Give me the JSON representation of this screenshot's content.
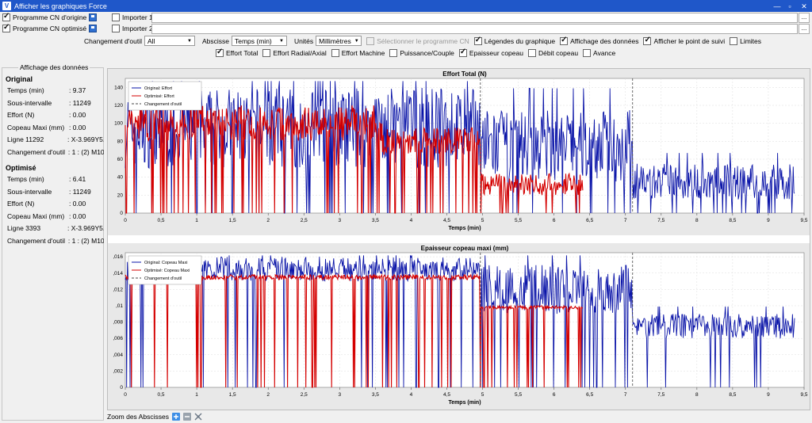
{
  "window": {
    "title": "Afficher les graphiques Force",
    "icon": "V"
  },
  "files": {
    "original": {
      "label": "Programme CN d'origine",
      "checked": true
    },
    "optimized": {
      "label": "Programme CN optimisé",
      "checked": true
    },
    "import1": {
      "label": "Importer 1",
      "checked": false
    },
    "import2": {
      "label": "Importer 2",
      "checked": false
    },
    "browse_label": "..."
  },
  "options": {
    "tool_change_label": "Changement d'outil",
    "tool_change_value": "All",
    "abscissa_label": "Abscisse",
    "abscissa_value": "Temps (min)",
    "units_label": "Unités",
    "units_value": "Millimètres",
    "select_program": "Sélectionner le programme CN",
    "legends": "Légendes du graphique",
    "data_display": "Affichage des données",
    "tracking_point": "Afficher le point de suivi",
    "limits": "Limites"
  },
  "series_toggles": [
    {
      "label": "Effort Total",
      "checked": true
    },
    {
      "label": "Effort Radial/Axial",
      "checked": false
    },
    {
      "label": "Effort Machine",
      "checked": false
    },
    {
      "label": "Puissance/Couple",
      "checked": false
    },
    {
      "label": "Epaisseur copeau",
      "checked": true
    },
    {
      "label": "Débit copeau",
      "checked": false
    },
    {
      "label": "Avance",
      "checked": false
    }
  ],
  "data_panel": {
    "title": "Affichage des données",
    "original": {
      "heading": "Original",
      "rows": [
        {
          "k": "Temps (min)",
          "v": ": 9.37"
        },
        {
          "k": "Sous-intervalle",
          "v": ": 11249"
        },
        {
          "k": "Effort (N)",
          "v": ": 0.00"
        },
        {
          "k": "Copeau Maxi (mm)",
          "v": ": 0.00"
        },
        {
          "k": "Ligne 11292",
          "v": ": X-3.969Y5."
        },
        {
          "k": "Changement d'outil",
          "v": ": 1 : (2) M10"
        }
      ]
    },
    "optimized": {
      "heading": "Optimisé",
      "rows": [
        {
          "k": "Temps (min)",
          "v": ": 6.41"
        },
        {
          "k": "Sous-intervalle",
          "v": ": 11249"
        },
        {
          "k": "Effort (N)",
          "v": ": 0.00"
        },
        {
          "k": "Copeau Maxi (mm)",
          "v": ": 0.00"
        },
        {
          "k": "Ligne 3393",
          "v": ": X-3.969Y5."
        },
        {
          "k": "Changement d'outil",
          "v": ": 1 : (2) M10"
        }
      ]
    }
  },
  "zoom": {
    "label": "Zoom des Abscisses"
  },
  "colors": {
    "original": "#0a14a8",
    "optimized": "#d40000",
    "tool_change": "#444444"
  },
  "chart_data": [
    {
      "type": "line",
      "title": "Effort Total (N)",
      "xlabel": "Temps (min)",
      "ylabel": "",
      "xlim": [
        0,
        9.5
      ],
      "ylim": [
        0,
        150
      ],
      "xticks": [
        "0",
        "0,5",
        "1",
        "1,5",
        "2",
        "2,5",
        "3",
        "3,5",
        "4",
        "4,5",
        "5",
        "5,5",
        "6",
        "6,5",
        "7",
        "7,5",
        "8",
        "8,5",
        "9",
        "9,5"
      ],
      "yticks": [
        "0",
        "20",
        "40",
        "60",
        "80",
        "100",
        "120",
        "140"
      ],
      "legend": [
        "Original: Effort",
        "Optimisé: Effort",
        "Changement d'outil"
      ],
      "legend_position": "top-left",
      "grid": true,
      "tool_changes": [
        4.97,
        7.1
      ],
      "series": [
        {
          "name": "Original: Effort",
          "x_range": [
            0,
            9.37
          ],
          "segments": [
            [
              0,
              4.97,
              95,
              45
            ],
            [
              4.97,
              7.1,
              75,
              40
            ],
            [
              7.1,
              9.37,
              35,
              20
            ]
          ]
        },
        {
          "name": "Optimisé: Effort",
          "x_range": [
            0,
            6.41
          ],
          "segments": [
            [
              0,
              3.6,
              100,
              20
            ],
            [
              3.6,
              4.97,
              80,
              15
            ],
            [
              4.97,
              6.41,
              32,
              12
            ]
          ]
        }
      ]
    },
    {
      "type": "line",
      "title": "Epaisseur copeau maxi (mm)",
      "xlabel": "Temps (min)",
      "ylabel": "",
      "xlim": [
        0,
        9.5
      ],
      "ylim": [
        0,
        0.0165
      ],
      "xticks": [
        "0",
        "0,5",
        "1",
        "1,5",
        "2",
        "2,5",
        "3",
        "3,5",
        "4",
        "4,5",
        "5",
        "5,5",
        "6",
        "6,5",
        "7",
        "7,5",
        "8",
        "8,5",
        "9",
        "9,5"
      ],
      "yticks": [
        "0",
        ",002",
        ",004",
        ",006",
        ",008",
        ",01",
        ",012",
        ",014",
        ",016"
      ],
      "legend": [
        "Original: Copeau Maxi",
        "Optimisé: Copeau Maxi",
        "Changement d'outil"
      ],
      "legend_position": "top-left",
      "grid": true,
      "tool_changes": [
        4.97,
        7.1
      ],
      "series": [
        {
          "name": "Original: Copeau Maxi",
          "x_range": [
            0,
            9.37
          ],
          "segments": [
            [
              0,
              4.97,
              0.0145,
              0.0015
            ],
            [
              4.97,
              7.1,
              0.012,
              0.003
            ],
            [
              7.1,
              9.37,
              0.0075,
              0.0015
            ]
          ]
        },
        {
          "name": "Optimisé: Copeau Maxi",
          "x_range": [
            0,
            6.41
          ],
          "segments": [
            [
              0,
              4.97,
              0.0135,
              0.0003
            ],
            [
              4.97,
              6.41,
              0.0098,
              0.0002
            ]
          ]
        }
      ]
    }
  ]
}
